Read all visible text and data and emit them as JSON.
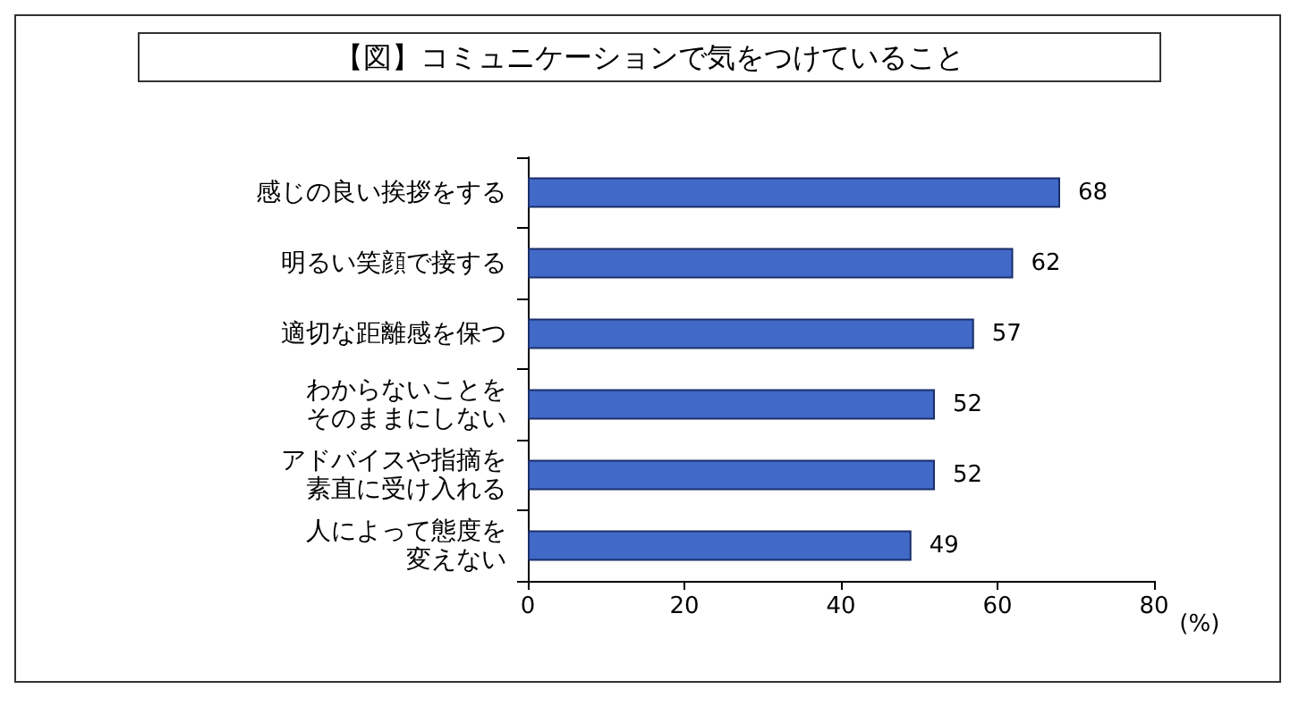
{
  "chart_data": {
    "type": "bar",
    "orientation": "horizontal",
    "title": "【図】コミュニケーションで気をつけていること",
    "xlabel": "(%)",
    "categories": [
      "感じの良い挨拶をする",
      "明るい笑顔で接する",
      "適切な距離感を保つ",
      "わからないことをそのままにしない",
      "アドバイスや指摘を素直に受け入れる",
      "人によって態度を変えない"
    ],
    "values": [
      68,
      62,
      57,
      52,
      52,
      49
    ],
    "color": "#4169c8",
    "xlim": [
      0,
      80
    ],
    "xticks": [
      0,
      20,
      40,
      60,
      80
    ],
    "data_labels": true,
    "grid": false
  }
}
